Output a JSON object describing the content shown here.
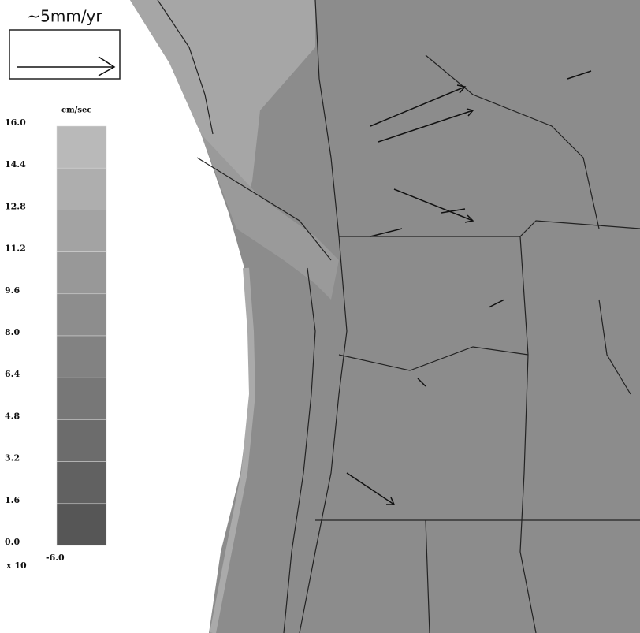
{
  "legend": {
    "arrow_label": "~5mm/yr"
  },
  "colorbar": {
    "title": "cm/sec",
    "ticks": [
      "16.0",
      "14.4",
      "12.8",
      "11.2",
      "9.6",
      "8.0",
      "6.4",
      "4.8",
      "3.2",
      "1.6",
      "0.0"
    ],
    "multiplier": "x 10",
    "exponent": "-6.0"
  }
}
